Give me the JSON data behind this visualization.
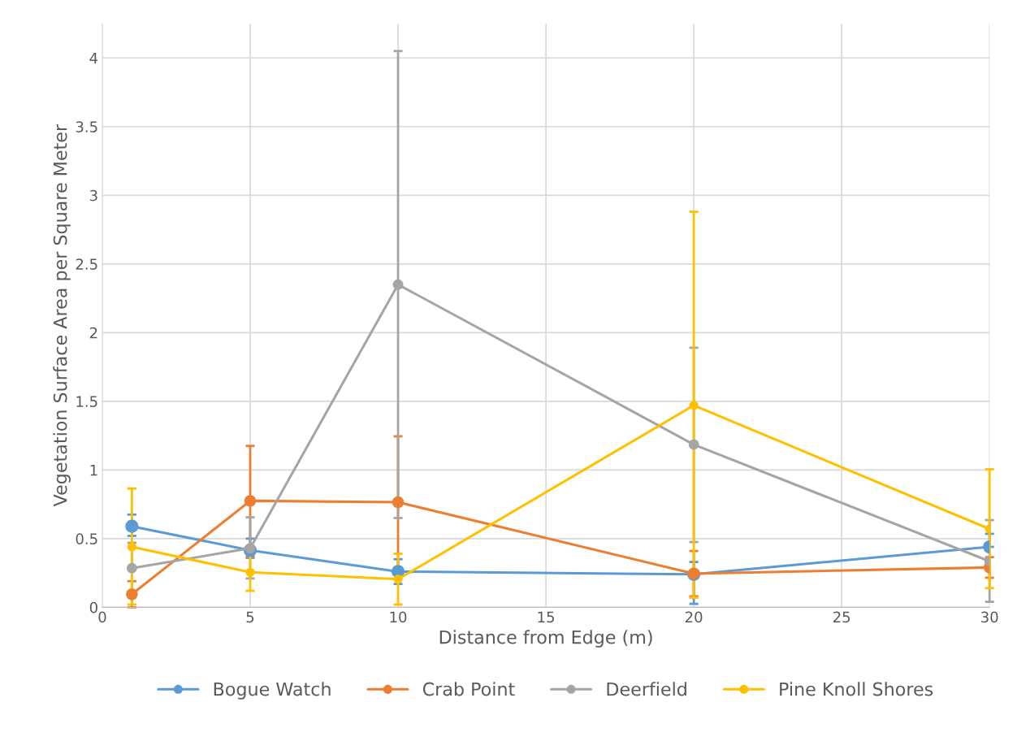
{
  "chart_data": {
    "type": "line",
    "xlabel": "Distance from Edge (m)",
    "ylabel": "Vegetation Surface Area per Square Meter",
    "x": [
      1,
      5,
      10,
      20,
      30
    ],
    "xlim": [
      0,
      30
    ],
    "xticks": [
      0,
      5,
      10,
      15,
      20,
      25,
      30
    ],
    "ylim": [
      0,
      4.25
    ],
    "yticks": [
      0,
      0.5,
      1,
      1.5,
      2,
      2.5,
      3,
      3.5,
      4
    ],
    "grid": true,
    "legend": "bottom",
    "marker": "circle",
    "line_style": "solid",
    "series": [
      {
        "name": "Bogue Watch",
        "color": "#5b9bd5",
        "values": [
          0.59,
          0.415,
          0.26,
          0.24,
          0.44
        ],
        "errors": [
          [
            0.52,
            0.675
          ],
          [
            0.36,
            0.5
          ],
          [
            0.17,
            0.35
          ],
          [
            0.025,
            0.33
          ],
          [
            0.44,
            0.535
          ]
        ]
      },
      {
        "name": "Crab Point",
        "color": "#ed7d31",
        "values": [
          0.095,
          0.775,
          0.765,
          0.245,
          0.29
        ],
        "errors": [
          [
            0.0,
            0.19
          ],
          [
            0.37,
            1.175
          ],
          [
            0.29,
            1.245
          ],
          [
            0.08,
            0.41
          ],
          [
            0.215,
            0.365
          ]
        ]
      },
      {
        "name": "Deerfield",
        "color": "#a5a5a5",
        "values": [
          0.285,
          0.43,
          2.35,
          1.185,
          0.335
        ],
        "errors": [
          [
            0.285,
            0.47
          ],
          [
            0.21,
            0.655
          ],
          [
            0.65,
            4.05
          ],
          [
            0.475,
            1.89
          ],
          [
            0.04,
            0.635
          ]
        ]
      },
      {
        "name": "Pine Knoll Shores",
        "color": "#ffc000",
        "values": [
          0.44,
          0.255,
          0.205,
          1.47,
          0.57
        ],
        "errors": [
          [
            0.02,
            0.865
          ],
          [
            0.12,
            0.39
          ],
          [
            0.02,
            0.39
          ],
          [
            0.07,
            2.88
          ],
          [
            0.14,
            1.005
          ]
        ]
      }
    ]
  }
}
